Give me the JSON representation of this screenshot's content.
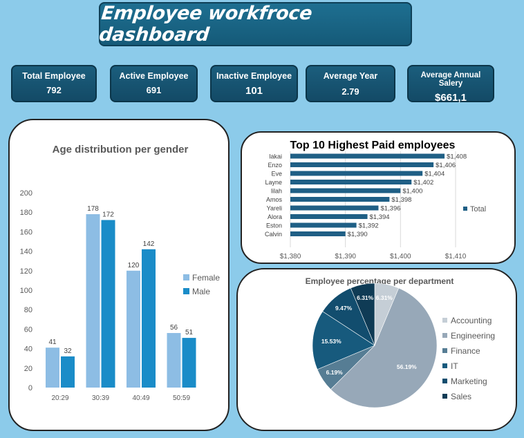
{
  "dashboard": {
    "title": "Employee workfroce dashboard"
  },
  "kpis": [
    {
      "label": "Total Employee",
      "value": "792"
    },
    {
      "label": "Active Employee",
      "value": "691"
    },
    {
      "label": "Inactive Employee",
      "value": "101"
    },
    {
      "label": "Average Year",
      "value": "2.79"
    },
    {
      "label": "Average Annual Salery",
      "value": "$661,1"
    }
  ],
  "colors": {
    "female": "#8dbde4",
    "male": "#1a8cc8",
    "bar_top10": "#1f5f85",
    "pie": [
      "#c5ced6",
      "#97a8b8",
      "#567d94",
      "#175a7d",
      "#124d6e",
      "#0f3b55"
    ]
  },
  "chart_data": [
    {
      "type": "bar",
      "title": "Age distribution  per gender",
      "categories": [
        "20:29",
        "30:39",
        "40:49",
        "50:59"
      ],
      "series": [
        {
          "name": "Female",
          "values": [
            41,
            178,
            120,
            56
          ]
        },
        {
          "name": "Male",
          "values": [
            32,
            172,
            142,
            51
          ]
        }
      ],
      "ylim": [
        0,
        200
      ],
      "yticks": [
        "0",
        "20",
        "40",
        "60",
        "80",
        "100",
        "120",
        "140",
        "160",
        "180",
        "200"
      ],
      "legend": "right",
      "grid": false
    },
    {
      "type": "bar",
      "orientation": "horizontal",
      "title": "Top 10 Highest Paid employees",
      "categories": [
        "lakai",
        "Enzo",
        "Eve",
        "Layne",
        "lilah",
        "Amos",
        "Yareli",
        "Alora",
        "Eston",
        "Calvin"
      ],
      "series": [
        {
          "name": "Total",
          "values": [
            1408,
            1406,
            1404,
            1402,
            1400,
            1398,
            1396,
            1394,
            1392,
            1390
          ]
        }
      ],
      "value_labels": [
        "$1,408",
        "$1,406",
        "$1,404",
        "$1,402",
        "$1,400",
        "$1,398",
        "$1,396",
        "$1,394",
        "$1,392",
        "$1,390"
      ],
      "xlim": [
        1380,
        1410
      ],
      "xticks": [
        1380,
        1390,
        1400,
        1410
      ],
      "xtick_labels": [
        "$1,380",
        "$1,390",
        "$1,400",
        "$1,410"
      ],
      "legend": "right",
      "grid": true
    },
    {
      "type": "pie",
      "title": "Employee percentage per department",
      "slices": [
        {
          "label": "Accounting",
          "value": 6.31,
          "text": "6.31%"
        },
        {
          "label": "Engineering",
          "value": 56.19,
          "text": "56.19%"
        },
        {
          "label": "Finance",
          "value": 6.19,
          "text": "6.19%"
        },
        {
          "label": "IT",
          "value": 15.53,
          "text": "15.53%"
        },
        {
          "label": "Marketing",
          "value": 9.47,
          "text": "9.47%"
        },
        {
          "label": "Sales",
          "value": 6.31,
          "text": "6.31%"
        }
      ],
      "legend": "right"
    }
  ]
}
